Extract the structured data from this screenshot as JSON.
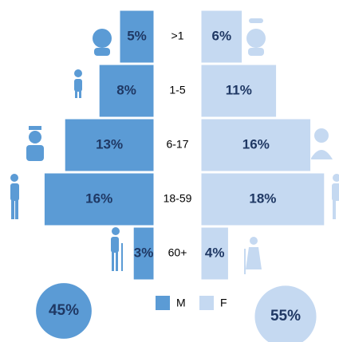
{
  "chart_data": {
    "type": "pyramid",
    "categories": [
      ">1",
      "1-5",
      "6-17",
      "18-59",
      "60+"
    ],
    "series": [
      {
        "name": "M",
        "color": "#5b9bd5",
        "values": [
          5,
          8,
          13,
          16,
          3
        ],
        "value_labels": [
          "5%",
          "8%",
          "13%",
          "16%",
          "3%"
        ],
        "total": 45,
        "total_label": "45%"
      },
      {
        "name": "F",
        "color": "#c5d9f1",
        "values": [
          6,
          11,
          16,
          18,
          4
        ],
        "value_labels": [
          "6%",
          "11%",
          "16%",
          "18%",
          "4%"
        ],
        "total": 55,
        "total_label": "55%"
      }
    ]
  }
}
